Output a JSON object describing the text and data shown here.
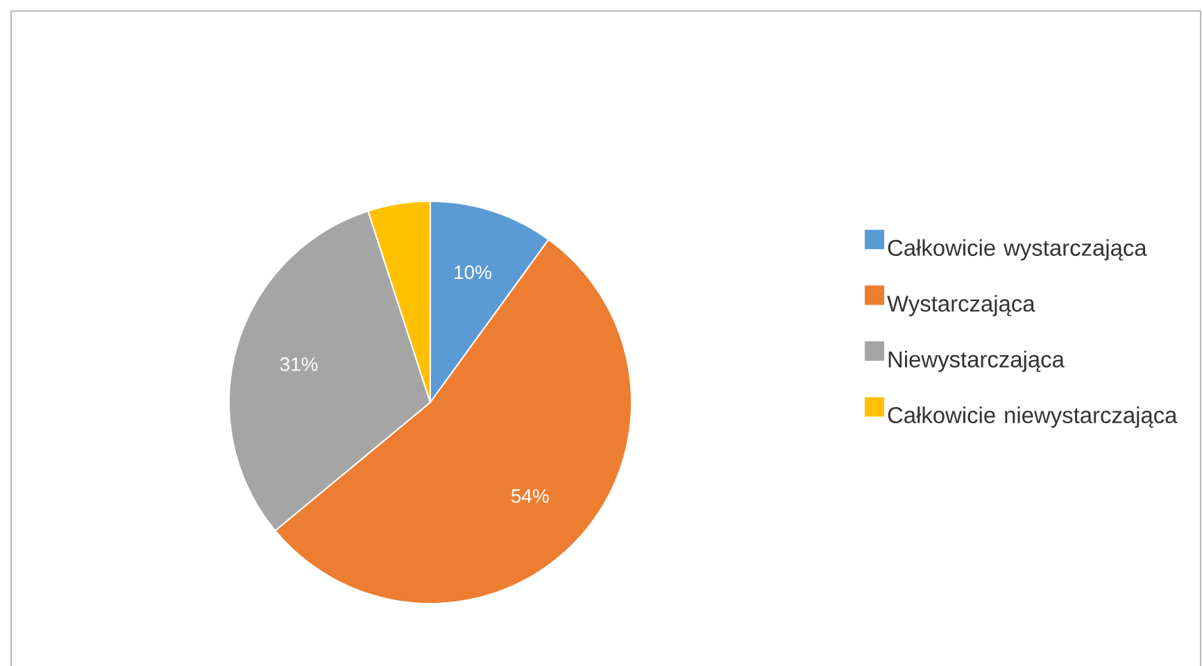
{
  "chart_data": {
    "type": "pie",
    "categories": [
      "Całkowicie wystarczająca",
      "Wystarczająca",
      "Niewystarczająca",
      "Całkowicie niewystarczająca"
    ],
    "values": [
      10,
      54,
      31,
      5
    ],
    "colors": [
      "#5b9bd5",
      "#ed7d31",
      "#a5a5a5",
      "#ffc000"
    ],
    "value_labels": [
      "10%",
      "54%",
      "31%",
      null
    ],
    "legend": "right"
  }
}
